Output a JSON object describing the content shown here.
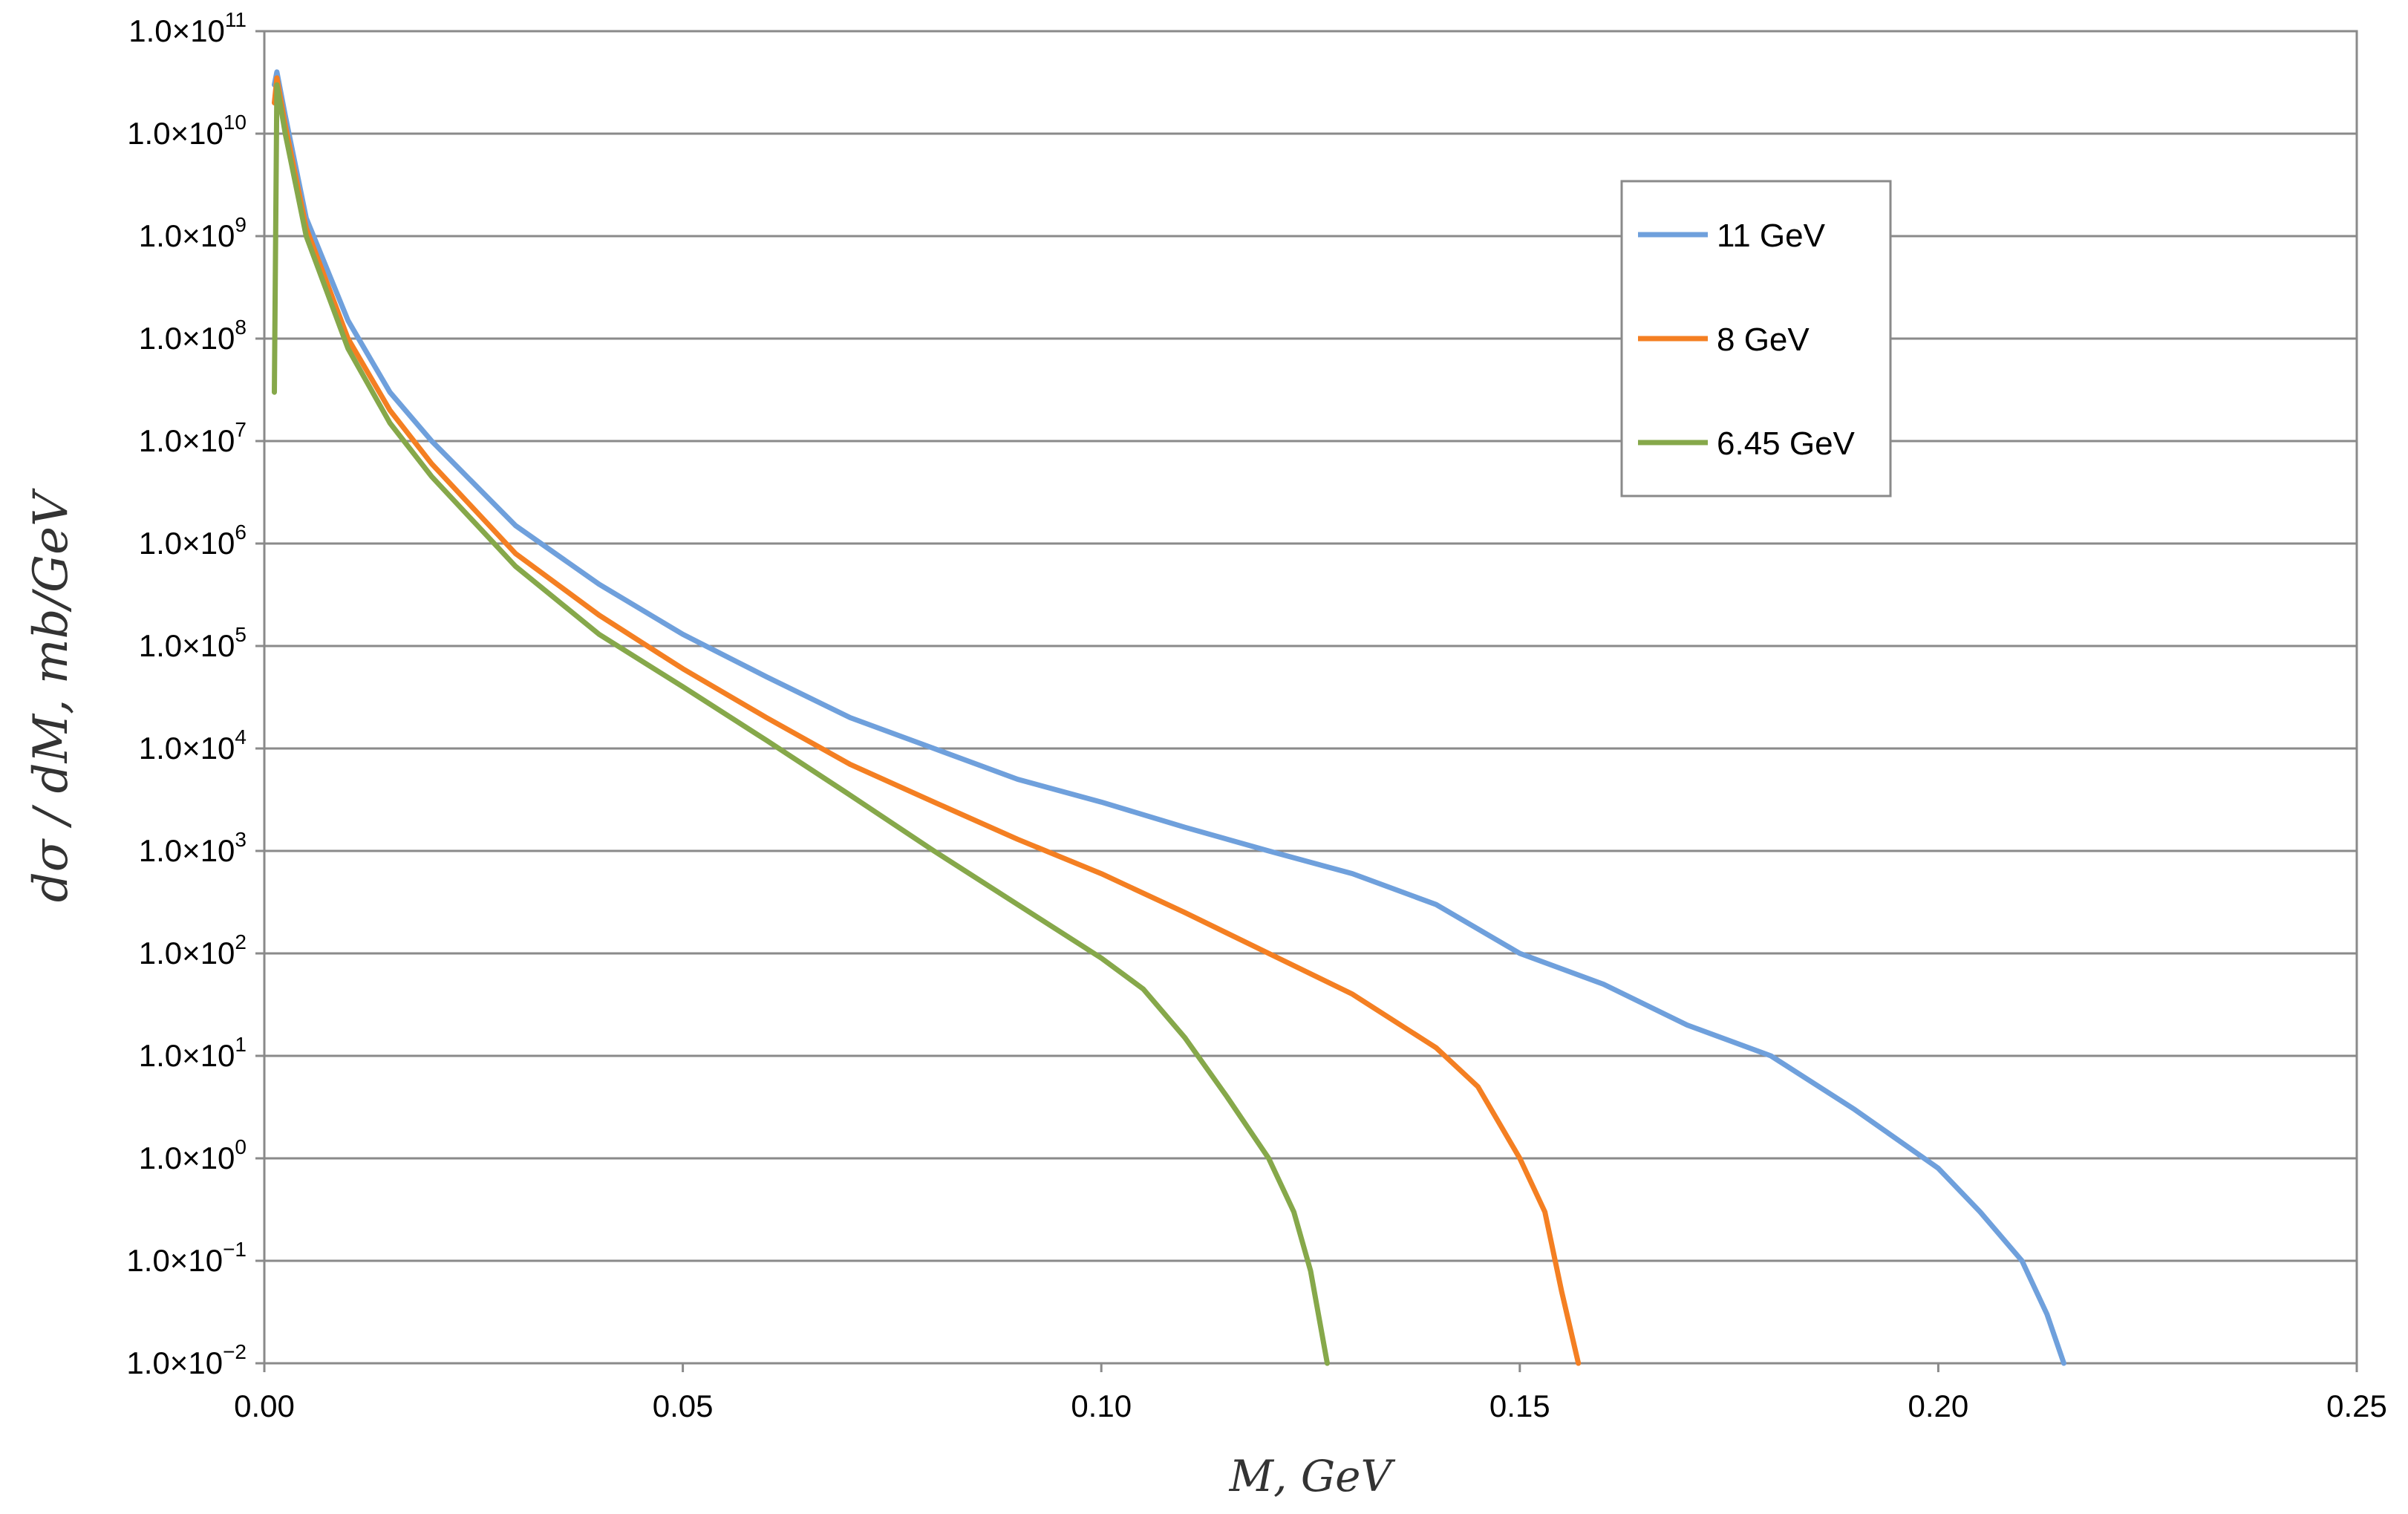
{
  "chart_data": {
    "type": "line",
    "title": "",
    "xlabel": "M, GeV",
    "ylabel": "dσ / dM, mb/GeV",
    "xlim": [
      0,
      0.25
    ],
    "ylim": [
      0.01,
      100000000000
    ],
    "yscale": "log",
    "grid": {
      "horizontal": true,
      "vertical": false
    },
    "legend_position": "top-right",
    "x_ticks": [
      "0.00",
      "0.05",
      "0.10",
      "0.15",
      "0.20",
      "0.25"
    ],
    "y_ticks": [
      {
        "mantissa": "1.0×10",
        "exp": "11"
      },
      {
        "mantissa": "1.0×10",
        "exp": "10"
      },
      {
        "mantissa": "1.0×10",
        "exp": "9"
      },
      {
        "mantissa": "1.0×10",
        "exp": "8"
      },
      {
        "mantissa": "1.0×10",
        "exp": "7"
      },
      {
        "mantissa": "1.0×10",
        "exp": "6"
      },
      {
        "mantissa": "1.0×10",
        "exp": "5"
      },
      {
        "mantissa": "1.0×10",
        "exp": "4"
      },
      {
        "mantissa": "1.0×10",
        "exp": "3"
      },
      {
        "mantissa": "1.0×10",
        "exp": "2"
      },
      {
        "mantissa": "1.0×10",
        "exp": "1"
      },
      {
        "mantissa": "1.0×10",
        "exp": "0"
      },
      {
        "mantissa": "1.0×10",
        "exp": "−1"
      },
      {
        "mantissa": "1.0×10",
        "exp": "−2"
      }
    ],
    "series": [
      {
        "name": "11 GeV",
        "color": "#6fa0dc",
        "x": [
          0.0012,
          0.0015,
          0.0025,
          0.005,
          0.01,
          0.015,
          0.02,
          0.03,
          0.04,
          0.05,
          0.06,
          0.07,
          0.08,
          0.09,
          0.1,
          0.11,
          0.12,
          0.13,
          0.14,
          0.15,
          0.16,
          0.17,
          0.18,
          0.19,
          0.2,
          0.205,
          0.21,
          0.213,
          0.215
        ],
        "y": [
          30000000000,
          40000000000,
          15000000000,
          1500000000,
          150000000,
          30000000,
          10000000,
          1500000,
          400000,
          130000,
          50000,
          20000,
          10000,
          5000,
          3000,
          1700,
          1000,
          600,
          300,
          100,
          50,
          20,
          10,
          3,
          0.8,
          0.3,
          0.1,
          0.03,
          0.01
        ]
      },
      {
        "name": "8 GeV",
        "color": "#f47f22",
        "x": [
          0.0012,
          0.0015,
          0.0025,
          0.005,
          0.01,
          0.015,
          0.02,
          0.03,
          0.04,
          0.05,
          0.06,
          0.07,
          0.08,
          0.09,
          0.1,
          0.11,
          0.12,
          0.13,
          0.14,
          0.145,
          0.15,
          0.153,
          0.155,
          0.157
        ],
        "y": [
          20000000000,
          35000000000,
          12000000000,
          1200000000,
          100000000,
          20000000,
          6000000,
          800000,
          200000,
          60000,
          20000,
          7000,
          3000,
          1300,
          600,
          250,
          100,
          40,
          12,
          5,
          1,
          0.3,
          0.05,
          0.01
        ]
      },
      {
        "name": "6.45 GeV",
        "color": "#86a84a",
        "x": [
          0.0012,
          0.0015,
          0.0025,
          0.005,
          0.01,
          0.015,
          0.02,
          0.03,
          0.04,
          0.05,
          0.06,
          0.07,
          0.08,
          0.09,
          0.1,
          0.105,
          0.11,
          0.115,
          0.12,
          0.123,
          0.125,
          0.127
        ],
        "y": [
          30000000,
          30000000000,
          10000000000,
          1000000000,
          80000000,
          15000000,
          4500000,
          600000,
          130000,
          40000,
          12000,
          3500,
          1000,
          300,
          90,
          45,
          15,
          4,
          1,
          0.3,
          0.08,
          0.01
        ]
      }
    ]
  }
}
